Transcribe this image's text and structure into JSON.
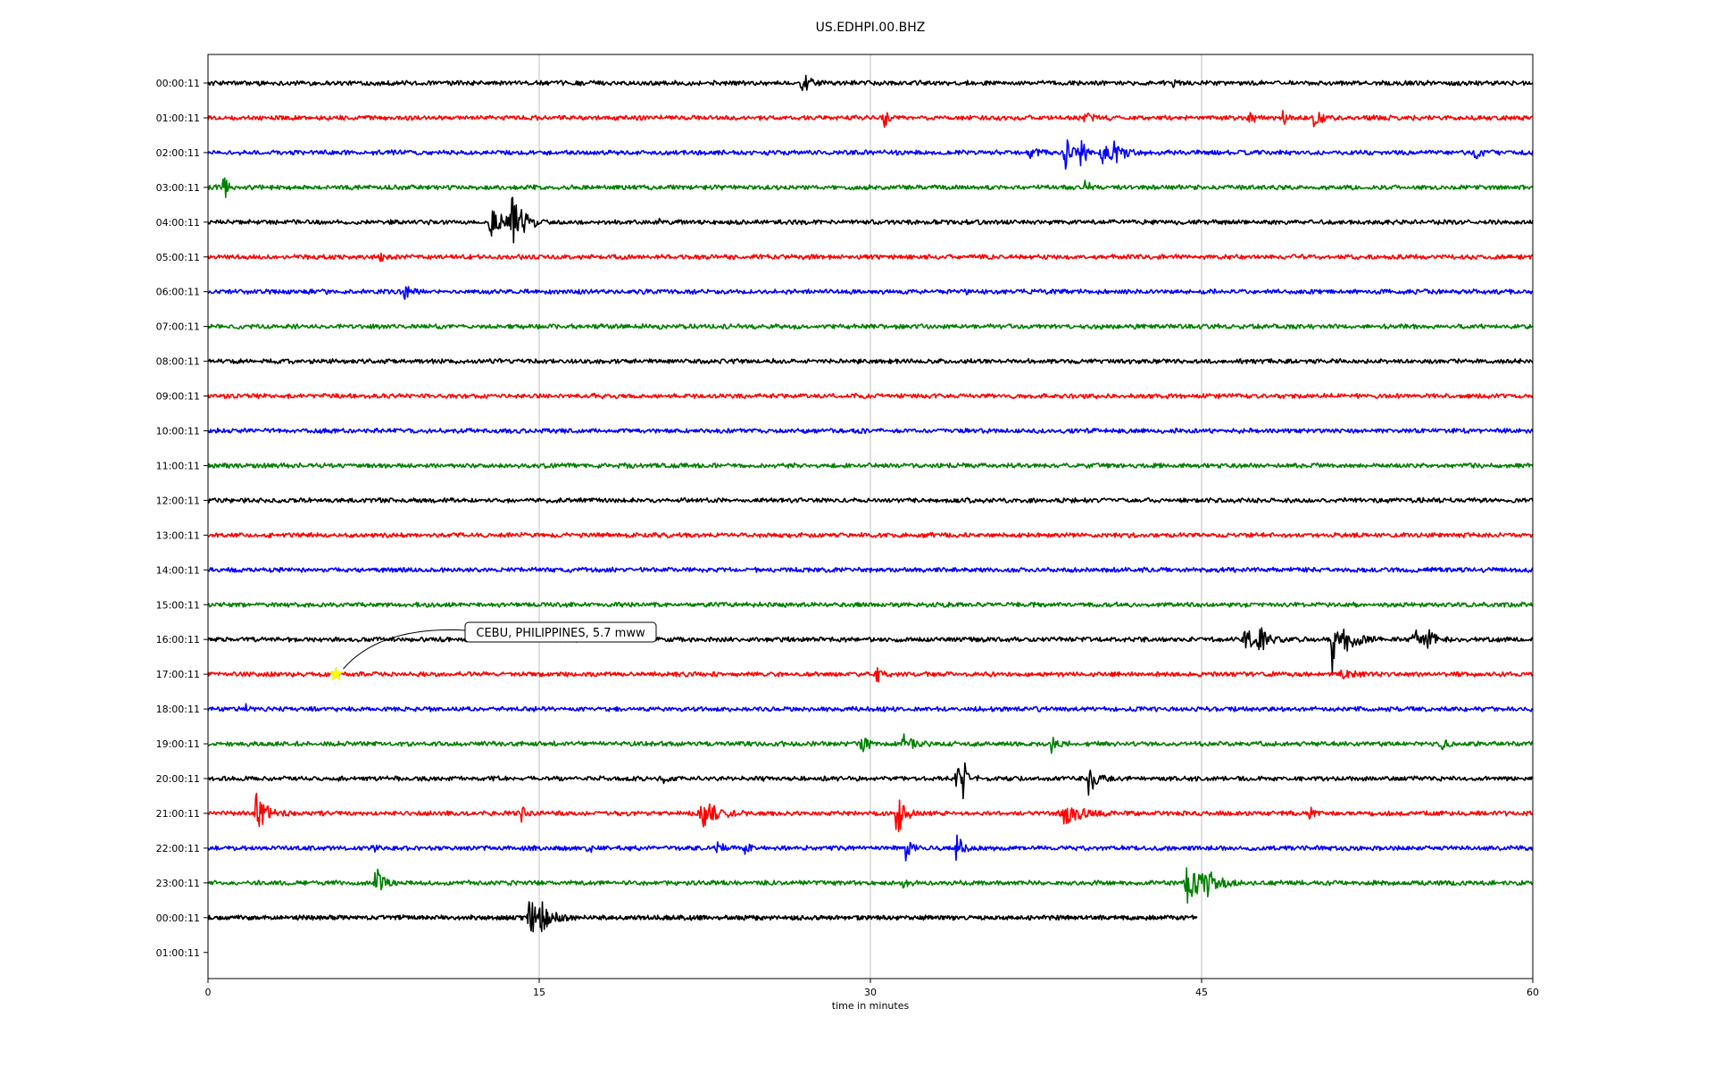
{
  "chart_data": {
    "type": "line",
    "title": "US.EDHPI.00.BHZ",
    "xlabel": "time in minutes",
    "xlim": [
      0,
      60
    ],
    "x_ticks": [
      0,
      15,
      30,
      45,
      60
    ],
    "grid": "vertical",
    "row_labels": [
      "00:00:11",
      "01:00:11",
      "02:00:11",
      "03:00:11",
      "04:00:11",
      "05:00:11",
      "06:00:11",
      "07:00:11",
      "08:00:11",
      "09:00:11",
      "10:00:11",
      "11:00:11",
      "12:00:11",
      "13:00:11",
      "14:00:11",
      "15:00:11",
      "16:00:11",
      "17:00:11",
      "18:00:11",
      "19:00:11",
      "20:00:11",
      "21:00:11",
      "22:00:11",
      "23:00:11",
      "00:00:11",
      "01:00:11"
    ],
    "trace_colors": [
      "#000000",
      "#ff0000",
      "#0000ff",
      "#008000"
    ],
    "noise_level": 0.09,
    "rows": [
      {
        "end": 60,
        "bursts": [
          {
            "t": 26.9,
            "a": 0.55,
            "w": 0.25
          },
          {
            "t": 43.7,
            "a": 0.18,
            "w": 0.1
          }
        ]
      },
      {
        "end": 60,
        "bursts": [
          {
            "t": 30.6,
            "a": 0.5,
            "w": 0.15
          },
          {
            "t": 39.7,
            "a": 0.25,
            "w": 0.4
          },
          {
            "t": 47.2,
            "a": 0.3,
            "w": 0.2
          },
          {
            "t": 48.7,
            "a": 0.3,
            "w": 0.2
          },
          {
            "t": 50.1,
            "a": 0.5,
            "w": 0.25
          }
        ]
      },
      {
        "end": 60,
        "bursts": [
          {
            "t": 8.3,
            "a": 0.2,
            "w": 0.1
          },
          {
            "t": 37.2,
            "a": 0.35,
            "w": 0.3
          },
          {
            "t": 38.8,
            "a": 0.9,
            "w": 0.2
          },
          {
            "t": 39.5,
            "a": 0.6,
            "w": 0.3
          },
          {
            "t": 40.5,
            "a": 0.6,
            "w": 0.3
          },
          {
            "t": 41.0,
            "a": 0.4,
            "w": 0.5
          },
          {
            "t": 57.4,
            "a": 0.35,
            "w": 0.25
          }
        ]
      },
      {
        "end": 60,
        "bursts": [
          {
            "t": 0.7,
            "a": 0.85,
            "w": 0.15
          },
          {
            "t": 39.7,
            "a": 0.35,
            "w": 0.2
          }
        ]
      },
      {
        "end": 60,
        "bursts": [
          {
            "t": 12.8,
            "a": 0.6,
            "w": 0.6
          },
          {
            "t": 13.7,
            "a": 1.4,
            "w": 0.3
          },
          {
            "t": 14.2,
            "a": 0.4,
            "w": 0.3
          },
          {
            "t": 20.4,
            "a": 0.15,
            "w": 0.1
          }
        ]
      },
      {
        "end": 60,
        "bursts": [
          {
            "t": 7.8,
            "a": 0.15,
            "w": 0.3
          }
        ]
      },
      {
        "end": 60,
        "bursts": [
          {
            "t": 8.9,
            "a": 0.45,
            "w": 0.2
          },
          {
            "t": 34.3,
            "a": 0.12,
            "w": 0.1
          }
        ]
      },
      {
        "end": 60,
        "bursts": []
      },
      {
        "end": 60,
        "bursts": []
      },
      {
        "end": 60,
        "bursts": []
      },
      {
        "end": 60,
        "bursts": []
      },
      {
        "end": 60,
        "bursts": []
      },
      {
        "end": 60,
        "bursts": []
      },
      {
        "end": 60,
        "bursts": []
      },
      {
        "end": 60,
        "bursts": []
      },
      {
        "end": 60,
        "bursts": []
      },
      {
        "end": 60,
        "bursts": [
          {
            "t": 47.0,
            "a": 0.5,
            "w": 0.5
          },
          {
            "t": 47.6,
            "a": 0.5,
            "w": 0.3
          },
          {
            "t": 50.9,
            "a": 1.6,
            "w": 0.15
          },
          {
            "t": 51.5,
            "a": 0.5,
            "w": 0.5
          },
          {
            "t": 54.6,
            "a": 0.55,
            "w": 0.3
          },
          {
            "t": 55.2,
            "a": 0.4,
            "w": 0.3
          }
        ]
      },
      {
        "end": 60,
        "bursts": [
          {
            "t": 30.3,
            "a": 0.35,
            "w": 0.2
          },
          {
            "t": 51.3,
            "a": 0.15,
            "w": 0.4
          }
        ]
      },
      {
        "end": 60,
        "bursts": [
          {
            "t": 1.7,
            "a": 0.3,
            "w": 0.1
          }
        ]
      },
      {
        "end": 60,
        "bursts": [
          {
            "t": 29.6,
            "a": 0.6,
            "w": 0.2
          },
          {
            "t": 31.5,
            "a": 0.5,
            "w": 0.3
          },
          {
            "t": 38.2,
            "a": 0.35,
            "w": 0.3
          },
          {
            "t": 55.8,
            "a": 0.3,
            "w": 0.2
          }
        ]
      },
      {
        "end": 60,
        "bursts": [
          {
            "t": 20.6,
            "a": 0.2,
            "w": 0.1
          },
          {
            "t": 33.9,
            "a": 0.6,
            "w": 0.3
          },
          {
            "t": 34.2,
            "a": 0.9,
            "w": 0.15
          },
          {
            "t": 39.9,
            "a": 0.8,
            "w": 0.25
          }
        ]
      },
      {
        "end": 60,
        "bursts": [
          {
            "t": 2.2,
            "a": 0.8,
            "w": 0.4
          },
          {
            "t": 14.2,
            "a": 0.35,
            "w": 0.15
          },
          {
            "t": 22.4,
            "a": 0.7,
            "w": 0.5
          },
          {
            "t": 31.2,
            "a": 1.0,
            "w": 0.3
          },
          {
            "t": 38.7,
            "a": 0.6,
            "w": 0.6
          },
          {
            "t": 49.9,
            "a": 0.3,
            "w": 0.15
          }
        ]
      },
      {
        "end": 60,
        "bursts": [
          {
            "t": 7.5,
            "a": 0.2,
            "w": 0.1
          },
          {
            "t": 17.2,
            "a": 0.3,
            "w": 0.2
          },
          {
            "t": 23.0,
            "a": 0.3,
            "w": 0.3
          },
          {
            "t": 24.3,
            "a": 0.3,
            "w": 0.2
          },
          {
            "t": 31.6,
            "a": 0.6,
            "w": 0.15
          },
          {
            "t": 33.9,
            "a": 0.6,
            "w": 0.3
          }
        ]
      },
      {
        "end": 60,
        "bursts": [
          {
            "t": 7.6,
            "a": 0.9,
            "w": 0.3
          },
          {
            "t": 31.5,
            "a": 0.2,
            "w": 0.2
          },
          {
            "t": 44.4,
            "a": 0.9,
            "w": 0.6
          },
          {
            "t": 45.2,
            "a": 0.4,
            "w": 0.4
          }
        ]
      },
      {
        "end": 44.8,
        "bursts": [
          {
            "t": 14.6,
            "a": 0.8,
            "w": 0.5
          },
          {
            "t": 15.1,
            "a": 0.5,
            "w": 0.3
          }
        ]
      },
      {
        "end": 0,
        "bursts": []
      }
    ],
    "annotations": [
      {
        "text": "CEBU, PHILIPPINES, 5.7 mww",
        "row": 17,
        "t": 5.8,
        "marker": "star",
        "marker_color": "#ffff00"
      }
    ]
  }
}
